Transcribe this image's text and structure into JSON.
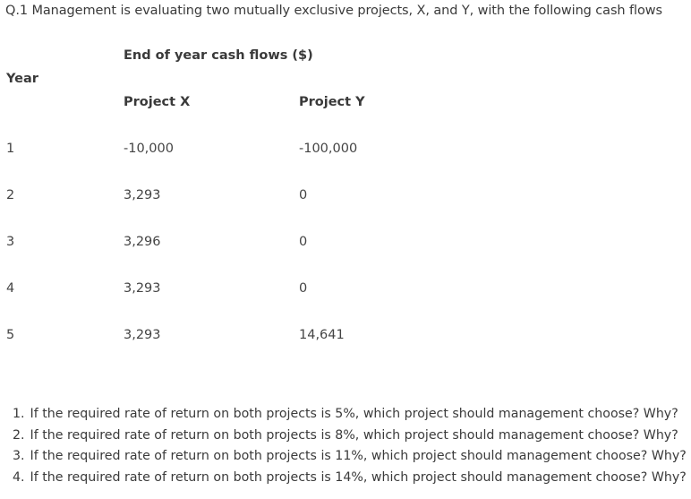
{
  "title": "Q.1 Management is evaluating two mutually exclusive projects, X, and Y, with the following cash flows",
  "table": {
    "caption": "End of year cash flows ($)",
    "year_header": "Year",
    "project_x_header": "Project X",
    "project_y_header": "Project Y",
    "rows": [
      {
        "year": "1",
        "x": "-10,000",
        "y": "-100,000"
      },
      {
        "year": "2",
        "x": "3,293",
        "y": "0"
      },
      {
        "year": "3",
        "x": "3,296",
        "y": "0"
      },
      {
        "year": "4",
        "x": "3,293",
        "y": "0"
      },
      {
        "year": "5",
        "x": "3,293",
        "y": "14,641"
      }
    ]
  },
  "questions": [
    {
      "num": "1.",
      "text": "If the required rate of return on both projects is 5%, which project should management choose? Why?"
    },
    {
      "num": "2.",
      "text": "If the required rate of return on both projects is 8%, which project should management choose? Why?"
    },
    {
      "num": "3.",
      "text": "If the required rate of return on both projects is 11%, which project should management choose? Why?"
    },
    {
      "num": "4.",
      "text": "If the required rate of return on both projects is 14%, which project should management choose? Why?"
    }
  ]
}
